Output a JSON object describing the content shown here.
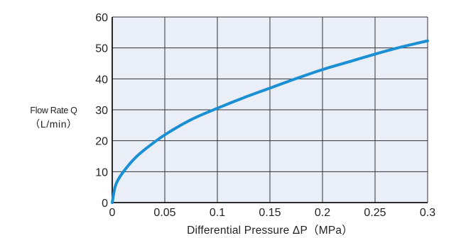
{
  "chart_data": {
    "type": "line",
    "title": "",
    "ylabel_line1": "Flow Rate Q",
    "ylabel_line2": "（L/min）",
    "xlabel": "Differential Pressure ΔP（MPa）",
    "xlim": [
      0,
      0.3
    ],
    "ylim": [
      0,
      60
    ],
    "x_ticks": [
      0,
      0.05,
      0.1,
      0.15,
      0.2,
      0.25,
      0.3
    ],
    "x_tick_labels": [
      "0",
      "0.05",
      "0.1",
      "0.15",
      "0.2",
      "0.25",
      "0.3"
    ],
    "y_ticks": [
      0,
      10,
      20,
      30,
      40,
      50,
      60
    ],
    "y_tick_labels": [
      "0",
      "10",
      "20",
      "30",
      "40",
      "50",
      "60"
    ],
    "grid": true,
    "colors": {
      "plot_background": "#e9eef7",
      "line": "#1a8fd4",
      "grid": "#333333"
    },
    "series": [
      {
        "x": [
          0,
          0.0025,
          0.005,
          0.01,
          0.02,
          0.03,
          0.05,
          0.075,
          0.1,
          0.125,
          0.15,
          0.175,
          0.2,
          0.225,
          0.25,
          0.275,
          0.3
        ],
        "y": [
          0,
          4.8,
          7.0,
          9.7,
          13.8,
          16.9,
          21.9,
          26.8,
          30.5,
          33.9,
          37.0,
          40.1,
          43.0,
          45.5,
          48.0,
          50.3,
          52.3
        ]
      }
    ]
  }
}
